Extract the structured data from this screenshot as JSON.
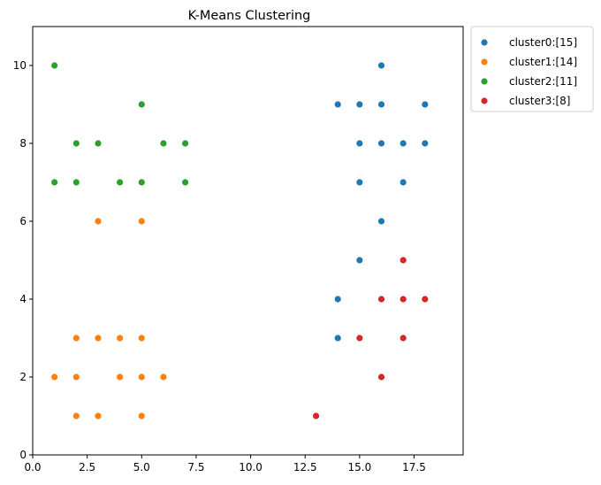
{
  "chart_data": {
    "type": "scatter",
    "title": "K-Means Clustering",
    "xlabel": "",
    "ylabel": "",
    "xlim": [
      0,
      19.75
    ],
    "ylim": [
      0,
      11
    ],
    "x_ticks": [
      0,
      2.5,
      5,
      7.5,
      10,
      12.5,
      15,
      17.5
    ],
    "x_tick_labels": [
      "0.0",
      "2.5",
      "5.0",
      "7.5",
      "10.0",
      "12.5",
      "15.0",
      "17.5"
    ],
    "y_ticks": [
      0,
      2,
      4,
      6,
      8,
      10
    ],
    "y_tick_labels": [
      "0",
      "2",
      "4",
      "6",
      "8",
      "10"
    ],
    "grid": false,
    "legend_position": "outside-top-right",
    "series": [
      {
        "name": "cluster0:[15]",
        "color": "#1f77b4",
        "points": [
          [
            16,
            10
          ],
          [
            14,
            9
          ],
          [
            15,
            9
          ],
          [
            16,
            9
          ],
          [
            18,
            9
          ],
          [
            15,
            8
          ],
          [
            16,
            8
          ],
          [
            17,
            8
          ],
          [
            18,
            8
          ],
          [
            15,
            7
          ],
          [
            17,
            7
          ],
          [
            16,
            6
          ],
          [
            15,
            5
          ],
          [
            14,
            4
          ],
          [
            14,
            3
          ]
        ]
      },
      {
        "name": "cluster1:[14]",
        "color": "#ff7f0e",
        "points": [
          [
            3,
            6
          ],
          [
            5,
            6
          ],
          [
            2,
            3
          ],
          [
            3,
            3
          ],
          [
            4,
            3
          ],
          [
            5,
            3
          ],
          [
            1,
            2
          ],
          [
            2,
            2
          ],
          [
            4,
            2
          ],
          [
            5,
            2
          ],
          [
            6,
            2
          ],
          [
            2,
            1
          ],
          [
            3,
            1
          ],
          [
            5,
            1
          ]
        ]
      },
      {
        "name": "cluster2:[11]",
        "color": "#2ca02c",
        "points": [
          [
            1,
            10
          ],
          [
            5,
            9
          ],
          [
            2,
            8
          ],
          [
            3,
            8
          ],
          [
            6,
            8
          ],
          [
            7,
            8
          ],
          [
            1,
            7
          ],
          [
            2,
            7
          ],
          [
            4,
            7
          ],
          [
            5,
            7
          ],
          [
            7,
            7
          ]
        ]
      },
      {
        "name": "cluster3:[8]",
        "color": "#d62728",
        "points": [
          [
            17,
            5
          ],
          [
            16,
            4
          ],
          [
            17,
            4
          ],
          [
            18,
            4
          ],
          [
            15,
            3
          ],
          [
            17,
            3
          ],
          [
            16,
            2
          ],
          [
            13,
            1
          ]
        ]
      }
    ]
  }
}
